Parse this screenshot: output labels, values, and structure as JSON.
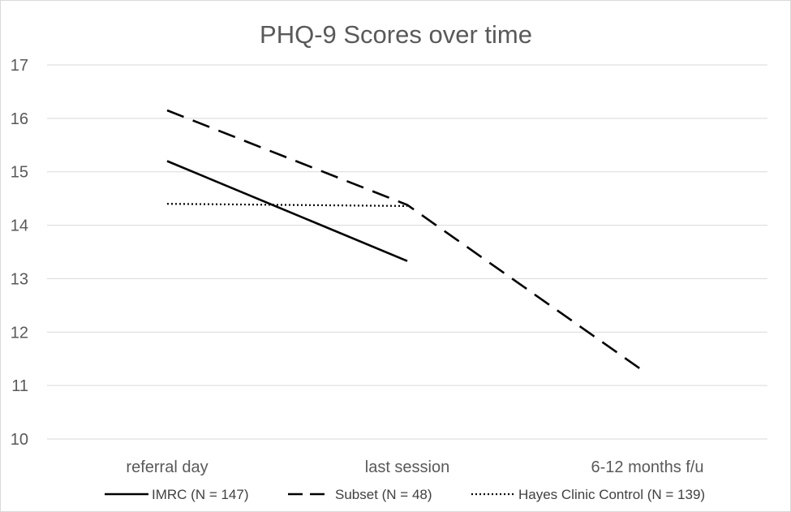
{
  "chart_data": {
    "type": "line",
    "title": "PHQ-9 Scores over time",
    "xlabel": "",
    "ylabel": "",
    "categories": [
      "referral day",
      "last session",
      "6-12 months f/u"
    ],
    "ylim": [
      10,
      17
    ],
    "yticks": [
      "10",
      "11",
      "12",
      "13",
      "14",
      "15",
      "16",
      "17"
    ],
    "grid": true,
    "legend_position": "bottom",
    "series": [
      {
        "name": "IMRC (N = 147)",
        "values": [
          15.2,
          13.33,
          null
        ],
        "style": "solid",
        "color": "#000000"
      },
      {
        "name": "Subset (N = 48)",
        "values": [
          16.15,
          14.38,
          11.22
        ],
        "style": "dashed",
        "color": "#000000"
      },
      {
        "name": "Hayes Clinic Control (N = 139)",
        "values": [
          14.4,
          14.36,
          null
        ],
        "style": "dotted",
        "color": "#000000"
      }
    ]
  }
}
